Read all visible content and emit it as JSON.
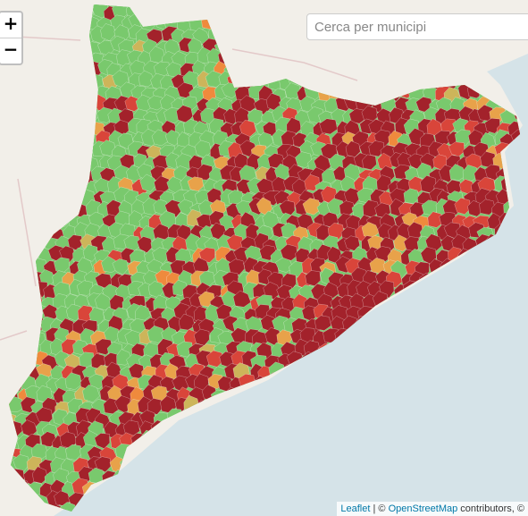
{
  "zoom_control": {
    "zoom_in": "+",
    "zoom_out": "−"
  },
  "search": {
    "placeholder": "Cerca per municipi"
  },
  "attribution": {
    "leaflet": "Leaflet",
    "separator": "| ©",
    "osm": "OpenStreetMap",
    "suffix": "contributors, ©"
  }
}
